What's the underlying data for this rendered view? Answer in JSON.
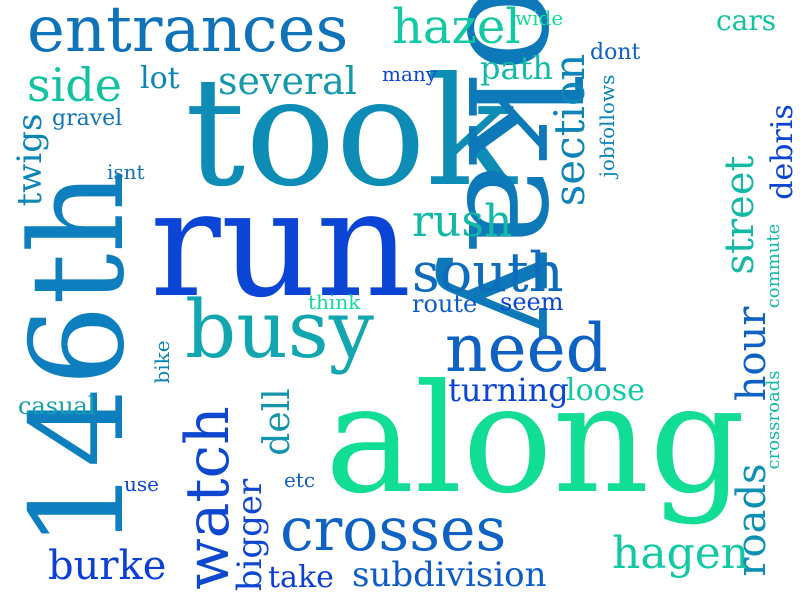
{
  "words": [
    {
      "id": "took",
      "text": "took",
      "color": "#0d8db5"
    },
    {
      "id": "run",
      "text": "run",
      "color": "#0b45d6"
    },
    {
      "id": "okay",
      "text": "okay",
      "color": "#0e79b8"
    },
    {
      "id": "along",
      "text": "along",
      "color": "#12dd94"
    },
    {
      "id": "146th",
      "text": "146th",
      "color": "#0d7fbf"
    },
    {
      "id": "entrances",
      "text": "entrances",
      "color": "#0e73b9"
    },
    {
      "id": "busy",
      "text": "busy",
      "color": "#12a7b0"
    },
    {
      "id": "need",
      "text": "need",
      "color": "#0d62c4"
    },
    {
      "id": "crosses",
      "text": "crosses",
      "color": "#0d62c4"
    },
    {
      "id": "watch",
      "text": "watch",
      "color": "#0e47d0"
    },
    {
      "id": "south",
      "text": "south",
      "color": "#0e6cbd"
    },
    {
      "id": "hazel",
      "text": "hazel",
      "color": "#12c9a3"
    },
    {
      "id": "side",
      "text": "side",
      "color": "#12c3a0"
    },
    {
      "id": "several",
      "text": "several",
      "color": "#1599ad"
    },
    {
      "id": "section",
      "text": "section",
      "color": "#0e85b8"
    },
    {
      "id": "hour",
      "text": "hour",
      "color": "#0d62c4"
    },
    {
      "id": "street",
      "text": "street",
      "color": "#12b9a6"
    },
    {
      "id": "hagen",
      "text": "hagen",
      "color": "#12c9a3"
    },
    {
      "id": "subdivision",
      "text": "subdivision",
      "color": "#0e5cc8"
    },
    {
      "id": "burke",
      "text": "burke",
      "color": "#0b3fd6"
    },
    {
      "id": "rush",
      "text": "rush",
      "color": "#12b9a6"
    },
    {
      "id": "roads",
      "text": "roads",
      "color": "#0e8fb4"
    },
    {
      "id": "dell",
      "text": "dell",
      "color": "#1595ad"
    },
    {
      "id": "bigger",
      "text": "bigger",
      "color": "#0e47d0"
    },
    {
      "id": "twigs",
      "text": "twigs",
      "color": "#0e85b8"
    },
    {
      "id": "turning",
      "text": "turning",
      "color": "#0b45d6"
    },
    {
      "id": "path",
      "text": "path",
      "color": "#12b9a6"
    },
    {
      "id": "lot",
      "text": "lot",
      "color": "#0e85b8"
    },
    {
      "id": "cars",
      "text": "cars",
      "color": "#12c3a0"
    },
    {
      "id": "debris",
      "text": "debris",
      "color": "#0b45d6"
    },
    {
      "id": "take",
      "text": "take",
      "color": "#0b3fd6"
    },
    {
      "id": "loose",
      "text": "loose",
      "color": "#12c9a3"
    },
    {
      "id": "route",
      "text": "route",
      "color": "#0e5cc8"
    },
    {
      "id": "seem",
      "text": "seem",
      "color": "#0b45d6"
    },
    {
      "id": "casual",
      "text": "casual",
      "color": "#15a1ad"
    },
    {
      "id": "gravel",
      "text": "gravel",
      "color": "#0e73b9"
    },
    {
      "id": "many",
      "text": "many",
      "color": "#0e47d0"
    },
    {
      "id": "wide",
      "text": "wide",
      "color": "#12dd94"
    },
    {
      "id": "dont",
      "text": "dont",
      "color": "#0d62c4"
    },
    {
      "id": "jobfollows",
      "text": "jobfollows",
      "color": "#0e85b8"
    },
    {
      "id": "isnt",
      "text": "isnt",
      "color": "#0e73b9"
    },
    {
      "id": "think",
      "text": "think",
      "color": "#12dd94"
    },
    {
      "id": "bike",
      "text": "bike",
      "color": "#0e85b8"
    },
    {
      "id": "use",
      "text": "use",
      "color": "#0b45d6"
    },
    {
      "id": "etc",
      "text": "etc",
      "color": "#0e5cc8"
    },
    {
      "id": "commute",
      "text": "commute",
      "color": "#12b9a6"
    },
    {
      "id": "crossroads",
      "text": "crossroads",
      "color": "#12b9a6"
    }
  ]
}
